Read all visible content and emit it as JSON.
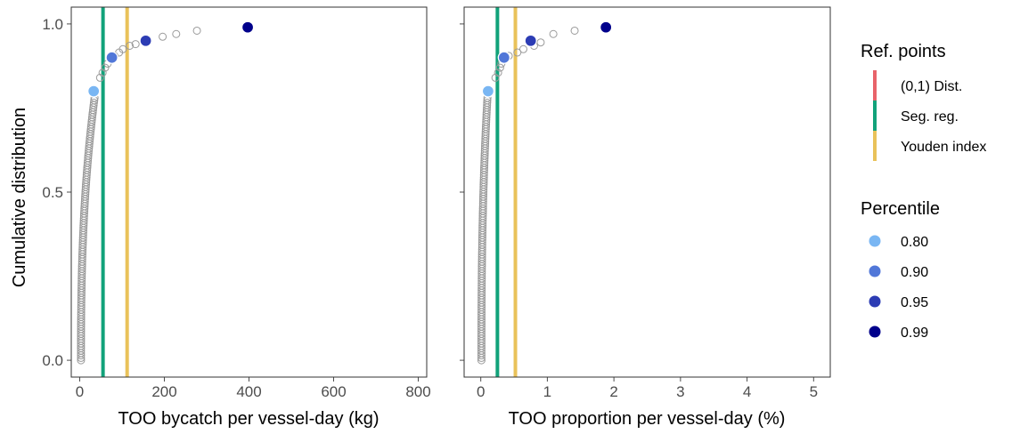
{
  "chart_data": [
    {
      "type": "scatter",
      "xlabel": "TOO bycatch per vessel-day (kg)",
      "ylabel": "Cumulative distribution",
      "xlim": [
        -20,
        820
      ],
      "ylim": [
        -0.05,
        1.05
      ],
      "xticks": [
        0,
        200,
        400,
        600,
        800
      ],
      "xtick_labels": [
        "0",
        "200",
        "400",
        "600",
        "800"
      ],
      "yticks": [
        0.0,
        0.5,
        1.0
      ],
      "ytick_labels": [
        "0.0",
        "0.5",
        "1.0"
      ],
      "grid": false,
      "dense_points": {
        "x_start": 3,
        "x_end": 35,
        "y_start": 0.0,
        "y_end": 0.78,
        "count": 110,
        "curve_exponent": 2.5
      },
      "sparse_points": [
        {
          "x": 48,
          "y": 0.84
        },
        {
          "x": 54,
          "y": 0.855
        },
        {
          "x": 60,
          "y": 0.87
        },
        {
          "x": 66,
          "y": 0.882
        },
        {
          "x": 82,
          "y": 0.905
        },
        {
          "x": 93,
          "y": 0.915
        },
        {
          "x": 102,
          "y": 0.925
        },
        {
          "x": 118,
          "y": 0.935
        },
        {
          "x": 132,
          "y": 0.94
        },
        {
          "x": 196,
          "y": 0.962
        },
        {
          "x": 228,
          "y": 0.97
        },
        {
          "x": 277,
          "y": 0.98
        }
      ],
      "percentile_points": [
        {
          "x": 33,
          "y": 0.8,
          "percentile": "0.80"
        },
        {
          "x": 76,
          "y": 0.9,
          "percentile": "0.90"
        },
        {
          "x": 156,
          "y": 0.95,
          "percentile": "0.95"
        },
        {
          "x": 397,
          "y": 0.99,
          "percentile": "0.99"
        }
      ],
      "ref_lines": [
        {
          "x": 55,
          "ref": "Seg. reg."
        },
        {
          "x": 112,
          "ref": "Youden index"
        }
      ]
    },
    {
      "type": "scatter",
      "xlabel": "TOO proportion per vessel-day (%)",
      "ylabel": "",
      "xlim": [
        -0.25,
        5.25
      ],
      "ylim": [
        -0.05,
        1.05
      ],
      "xticks": [
        0,
        1,
        2,
        3,
        4,
        5
      ],
      "xtick_labels": [
        "0",
        "1",
        "2",
        "3",
        "4",
        "5"
      ],
      "yticks": [
        0.0,
        0.5,
        1.0
      ],
      "ytick_labels": [
        "",
        "",
        ""
      ],
      "grid": false,
      "dense_points": {
        "x_start": 0.01,
        "x_end": 0.1,
        "y_start": 0.0,
        "y_end": 0.78,
        "count": 110,
        "curve_exponent": 2.5
      },
      "sparse_points": [
        {
          "x": 0.22,
          "y": 0.84
        },
        {
          "x": 0.26,
          "y": 0.855
        },
        {
          "x": 0.29,
          "y": 0.87
        },
        {
          "x": 0.31,
          "y": 0.882
        },
        {
          "x": 0.42,
          "y": 0.905
        },
        {
          "x": 0.55,
          "y": 0.915
        },
        {
          "x": 0.64,
          "y": 0.925
        },
        {
          "x": 0.8,
          "y": 0.935
        },
        {
          "x": 0.9,
          "y": 0.945
        },
        {
          "x": 1.09,
          "y": 0.97
        },
        {
          "x": 1.41,
          "y": 0.98
        }
      ],
      "percentile_points": [
        {
          "x": 0.11,
          "y": 0.8,
          "percentile": "0.80"
        },
        {
          "x": 0.35,
          "y": 0.9,
          "percentile": "0.90"
        },
        {
          "x": 0.75,
          "y": 0.95,
          "percentile": "0.95"
        },
        {
          "x": 1.88,
          "y": 0.99,
          "percentile": "0.99"
        }
      ],
      "ref_lines": [
        {
          "x": 0.25,
          "ref": "Seg. reg."
        },
        {
          "x": 0.52,
          "ref": "Youden index"
        }
      ]
    }
  ],
  "legend": {
    "placement": "right",
    "ref_title": "Ref. points",
    "ref_items": [
      {
        "label": "(0,1) Dist.",
        "color": "#e8636a"
      },
      {
        "label": "Seg. reg.",
        "color": "#12a27a"
      },
      {
        "label": "Youden index",
        "color": "#e9c25a"
      }
    ],
    "pct_title": "Percentile",
    "pct_items": [
      {
        "label": "0.80",
        "color": "#79b6f3"
      },
      {
        "label": "0.90",
        "color": "#5177d8"
      },
      {
        "label": "0.95",
        "color": "#2c3cb4"
      },
      {
        "label": "0.99",
        "color": "#00008b"
      }
    ]
  },
  "colors": {
    "open_point": "#9a9a9a",
    "panel_border": "#333333",
    "tick": "#4d4d4d"
  }
}
